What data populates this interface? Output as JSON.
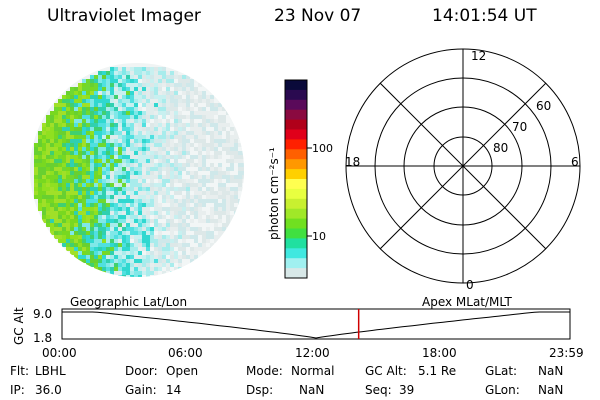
{
  "header": {
    "instrument": "Ultraviolet Imager",
    "date": "23 Nov 07",
    "time": "14:01:54 UT"
  },
  "colorbar": {
    "label": "photon cm⁻²s⁻¹",
    "ticks": [
      "100",
      "10"
    ],
    "colors": [
      "#0a0a3a",
      "#2a0a50",
      "#5a0a5a",
      "#8a0a40",
      "#b0001a",
      "#e0001a",
      "#ff2000",
      "#ff6000",
      "#ff9800",
      "#ffd000",
      "#ffff50",
      "#e8ff40",
      "#c8f030",
      "#a0e828",
      "#70e020",
      "#40e040",
      "#20e0a0",
      "#40e8e0",
      "#a0f0f0",
      "#d8e8e8"
    ]
  },
  "polar_grid": {
    "mlt_labels": [
      "12",
      "18",
      "6",
      "0"
    ],
    "lat_labels": [
      "60",
      "70",
      "80"
    ]
  },
  "timeline": {
    "left_label": "Geographic Lat/Lon",
    "right_label": "Apex  MLat/MLT",
    "axis_title": "GC Alt",
    "y_ticks": [
      "9.0",
      "1.8"
    ],
    "x_ticks": [
      "00:00",
      "06:00",
      "12:00",
      "18:00",
      "23:59"
    ],
    "current_time_fraction": 0.584,
    "marker_color": "#d00000"
  },
  "info": {
    "flt_label": "Flt:",
    "flt_value": "LBHL",
    "ip_label": "IP:",
    "ip_value": "36.0",
    "door_label": "Door:",
    "door_value": "Open",
    "gain_label": "Gain:",
    "gain_value": "14",
    "mode_label": "Mode:",
    "mode_value": "Normal",
    "dsp_label": "Dsp:",
    "dsp_value": "NaN",
    "gcalt_label": "GC Alt:",
    "gcalt_value": "5.1 Re",
    "seq_label": "Seq:",
    "seq_value": "39",
    "glat_label": "GLat:",
    "glat_value": "NaN",
    "glon_label": "GLon:",
    "glon_value": "NaN"
  }
}
